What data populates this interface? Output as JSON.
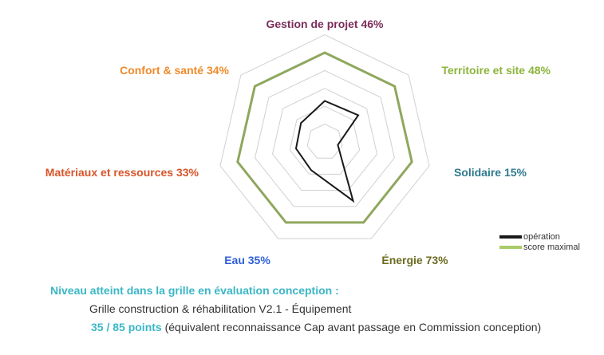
{
  "chart_data": {
    "type": "radar",
    "title": "",
    "axes": [
      {
        "label": "Gestion de projet",
        "value_label": "46%",
        "color": "#7b2d5a"
      },
      {
        "label": "Territoire et site",
        "value_label": "48%",
        "color": "#8cb43c"
      },
      {
        "label": "Solidaire",
        "value_label": "15%",
        "color": "#2f7a8f"
      },
      {
        "label": "Énergie",
        "value_label": "73%",
        "color": "#6b6b1f"
      },
      {
        "label": "Eau",
        "value_label": "35%",
        "color": "#2f5fd8"
      },
      {
        "label": "Matériaux et ressources",
        "value_label": "33%",
        "color": "#d9542a"
      },
      {
        "label": "Confort & santé",
        "value_label": "34%",
        "color": "#f08a2a"
      }
    ],
    "series": [
      {
        "name": "opération",
        "values": [
          46,
          48,
          15,
          73,
          35,
          33,
          34
        ],
        "color": "#1a1a1a"
      },
      {
        "name": "score maximal",
        "values": [
          100,
          100,
          100,
          100,
          100,
          100,
          100
        ],
        "color": "#8fa75e"
      }
    ],
    "rlim": [
      0,
      100
    ],
    "grid_levels": [
      20,
      40,
      60,
      80,
      100,
      120
    ],
    "legend_position": "bottom-right"
  },
  "footer": {
    "heading": "Niveau atteint dans la grille en évaluation conception :",
    "grid": "Grille construction & réhabilitation V2.1 - Équipement",
    "points": "35 / 85 points",
    "note": " (équivalent reconnaissance Cap avant passage en Commission conception)"
  }
}
